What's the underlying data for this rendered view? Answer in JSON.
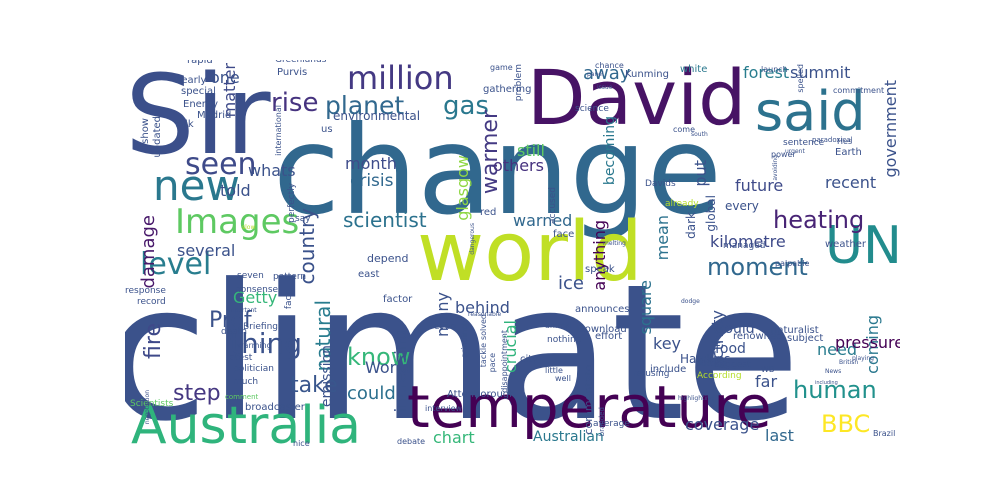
{
  "colors": {
    "background": "#ffffff",
    "palette": [
      "#440154",
      "#3b528b",
      "#31688e",
      "#21918c",
      "#35b779",
      "#5ec962",
      "#b5de2b",
      "#fde725"
    ]
  },
  "words": [
    {
      "text": "climate",
      "color": "#3b528b"
    },
    {
      "text": "change",
      "color": "#31688e"
    },
    {
      "text": "Sir",
      "color": "#3b4f8a"
    },
    {
      "text": "world",
      "color": "#c0df25"
    },
    {
      "text": "David",
      "color": "#471365"
    },
    {
      "text": "temperature",
      "color": "#440154"
    },
    {
      "text": "Australia",
      "color": "#2fb47c"
    },
    {
      "text": "said",
      "color": "#2c728e"
    },
    {
      "text": "UN",
      "color": "#228c8d"
    },
    {
      "text": "new",
      "color": "#2a788e"
    },
    {
      "text": "Images",
      "color": "#5ec962"
    },
    {
      "text": "seen",
      "color": "#3e4a89"
    },
    {
      "text": "level",
      "color": "#287d8e"
    },
    {
      "text": "million",
      "color": "#443983"
    },
    {
      "text": "rise",
      "color": "#46337f"
    },
    {
      "text": "planet",
      "color": "#31688e"
    },
    {
      "text": "gas",
      "color": "#2a788e"
    },
    {
      "text": "warmer",
      "color": "#443a83"
    },
    {
      "text": "thing",
      "color": "#3b528b"
    },
    {
      "text": "human",
      "color": "#21918c"
    },
    {
      "text": "know",
      "color": "#35b779"
    },
    {
      "text": "heating",
      "color": "#482475"
    },
    {
      "text": "moment",
      "color": "#31688e"
    },
    {
      "text": "BBC",
      "color": "#fde725"
    },
    {
      "text": "Prof",
      "color": "#3b528b"
    },
    {
      "text": "step",
      "color": "#453781"
    },
    {
      "text": "take",
      "color": "#39568c"
    },
    {
      "text": "fire",
      "color": "#3e4989"
    },
    {
      "text": "could",
      "color": "#2d708e"
    },
    {
      "text": "natural",
      "color": "#287c8e"
    },
    {
      "text": "damage",
      "color": "#48186a"
    },
    {
      "text": "country",
      "color": "#3b528b"
    },
    {
      "text": "scientist",
      "color": "#2c728e"
    },
    {
      "text": "crisis",
      "color": "#31688e"
    },
    {
      "text": "month",
      "color": "#3e4c8a"
    },
    {
      "text": "others",
      "color": "#46327e"
    },
    {
      "text": "still",
      "color": "#5ec962"
    },
    {
      "text": "glasgow",
      "color": "#8fd744"
    },
    {
      "text": "becoming",
      "color": "#2a788e"
    },
    {
      "text": "warned",
      "color": "#31688e"
    },
    {
      "text": "anything",
      "color": "#440154"
    },
    {
      "text": "mean",
      "color": "#2c728e"
    },
    {
      "text": "put",
      "color": "#3b528b"
    },
    {
      "text": "away",
      "color": "#31688e"
    },
    {
      "text": "forest",
      "color": "#287d8e"
    },
    {
      "text": "summit",
      "color": "#3b528b"
    },
    {
      "text": "government",
      "color": "#3b528b"
    },
    {
      "text": "recent",
      "color": "#3b528b"
    },
    {
      "text": "future",
      "color": "#3e4a89"
    },
    {
      "text": "kilometre",
      "color": "#3e4a89"
    },
    {
      "text": "square",
      "color": "#2c728e"
    },
    {
      "text": "coming",
      "color": "#2a788e"
    },
    {
      "text": "need",
      "color": "#287c8e"
    },
    {
      "text": "activity",
      "color": "#3b528b"
    },
    {
      "text": "far",
      "color": "#3b528b"
    },
    {
      "text": "last",
      "color": "#31688e"
    },
    {
      "text": "coverage",
      "color": "#3b528b"
    },
    {
      "text": "Australian",
      "color": "#2a788e"
    },
    {
      "text": "chart",
      "color": "#35b779"
    },
    {
      "text": "ice",
      "color": "#3b528b"
    },
    {
      "text": "behind",
      "color": "#3b528b"
    },
    {
      "text": "crucial",
      "color": "#2fb47c"
    },
    {
      "text": "many",
      "color": "#3b528b"
    },
    {
      "text": "increasing",
      "color": "#3b528b"
    },
    {
      "text": "emission",
      "color": "#3b528b"
    },
    {
      "text": "World",
      "color": "#3b528b"
    },
    {
      "text": "several",
      "color": "#3b528b"
    },
    {
      "text": "Getty",
      "color": "#35b779"
    },
    {
      "text": "told",
      "color": "#3b528b"
    },
    {
      "text": "whats",
      "color": "#3b528b"
    },
    {
      "text": "matter",
      "color": "#3e4a89"
    },
    {
      "text": "one",
      "color": "#3b528b"
    },
    {
      "text": "key",
      "color": "#3b528b"
    },
    {
      "text": "pressure",
      "color": "#440154"
    },
    {
      "text": "dark",
      "color": "#3b528b"
    },
    {
      "text": "global",
      "color": "#3b528b"
    },
    {
      "text": "every",
      "color": "#3b528b"
    },
    {
      "text": "would",
      "color": "#3b528b"
    },
    {
      "text": "food",
      "color": "#3b528b"
    },
    {
      "text": "Earth",
      "color": "#3b528b"
    },
    {
      "text": "white",
      "color": "#2a788e"
    },
    {
      "text": "Kunming",
      "color": "#3b528b"
    },
    {
      "text": "environmental",
      "color": "#3b528b"
    },
    {
      "text": "gathering",
      "color": "#3b528b"
    },
    {
      "text": "Purvis",
      "color": "#3b528b"
    },
    {
      "text": "nearly",
      "color": "#3b528b"
    },
    {
      "text": "special",
      "color": "#3b528b"
    },
    {
      "text": "Energy",
      "color": "#3b528b"
    },
    {
      "text": "Madrid",
      "color": "#3b528b"
    },
    {
      "text": "show",
      "color": "#3b528b"
    },
    {
      "text": "updated",
      "color": "#3b528b"
    },
    {
      "text": "talk",
      "color": "#3b528b"
    },
    {
      "text": "rapid",
      "color": "#3b528b"
    },
    {
      "text": "Greenlands",
      "color": "#3b528b"
    },
    {
      "text": "international",
      "color": "#3b528b"
    },
    {
      "text": "us",
      "color": "#3b528b"
    },
    {
      "text": "red",
      "color": "#3b528b"
    },
    {
      "text": "depend",
      "color": "#3b528b"
    },
    {
      "text": "east",
      "color": "#3b528b"
    },
    {
      "text": "Briefing",
      "color": "#3b528b"
    },
    {
      "text": "death",
      "color": "#3b528b"
    },
    {
      "text": "latest",
      "color": "#3b528b"
    },
    {
      "text": "politician",
      "color": "#3b528b"
    },
    {
      "text": "much",
      "color": "#3b528b"
    },
    {
      "text": "broadcaster",
      "color": "#3b528b"
    },
    {
      "text": "Scientists",
      "color": "#5ec962"
    },
    {
      "text": "comment",
      "color": "#5ec962"
    },
    {
      "text": "Attenborough",
      "color": "#3b528b"
    },
    {
      "text": "interview",
      "color": "#3b528b"
    },
    {
      "text": "debate",
      "color": "#3b528b"
    },
    {
      "text": "average",
      "color": "#3b528b"
    },
    {
      "text": "city",
      "color": "#3b528b"
    },
    {
      "text": "Hawkins",
      "color": "#3b528b"
    },
    {
      "text": "commentator",
      "color": "#3b528b"
    },
    {
      "text": "Download",
      "color": "#3b528b"
    },
    {
      "text": "effort",
      "color": "#3b528b"
    },
    {
      "text": "refusing",
      "color": "#3b528b"
    },
    {
      "text": "According",
      "color": "#b5de2b"
    },
    {
      "text": "putting",
      "color": "#3b528b"
    },
    {
      "text": "include",
      "color": "#3b528b"
    },
    {
      "text": "suggest",
      "color": "#3b528b"
    },
    {
      "text": "subject",
      "color": "#3b528b"
    },
    {
      "text": "naturalist",
      "color": "#3b528b"
    },
    {
      "text": "renowned",
      "color": "#3b528b"
    },
    {
      "text": "managed",
      "color": "#3b528b"
    },
    {
      "text": "palpable",
      "color": "#3b528b"
    },
    {
      "text": "weather",
      "color": "#3b528b"
    },
    {
      "text": "response",
      "color": "#3b528b"
    },
    {
      "text": "record",
      "color": "#3b528b"
    },
    {
      "text": "seven",
      "color": "#3b528b"
    },
    {
      "text": "nonsense",
      "color": "#3b528b"
    },
    {
      "text": "pattern",
      "color": "#3b528b"
    },
    {
      "text": "fact",
      "color": "#3b528b"
    },
    {
      "text": "factor",
      "color": "#3b528b"
    },
    {
      "text": "even",
      "color": "#3b528b"
    },
    {
      "text": "animal",
      "color": "#3b528b"
    },
    {
      "text": "pace",
      "color": "#3b528b"
    },
    {
      "text": "nothing",
      "color": "#3b528b"
    },
    {
      "text": "announces",
      "color": "#3b528b"
    },
    {
      "text": "speak",
      "color": "#3b528b"
    },
    {
      "text": "already",
      "color": "#b5de2b"
    },
    {
      "text": "Davids",
      "color": "#3b528b"
    },
    {
      "text": "accused",
      "color": "#3b528b"
    },
    {
      "text": "face",
      "color": "#3b528b"
    },
    {
      "text": "perfectly",
      "color": "#3b528b"
    },
    {
      "text": "say",
      "color": "#3b528b"
    },
    {
      "text": "disappointment",
      "color": "#3b528b"
    },
    {
      "text": "tackle",
      "color": "#3b528b"
    },
    {
      "text": "grindingly",
      "color": "#3b528b"
    },
    {
      "text": "solved",
      "color": "#3b528b"
    },
    {
      "text": "warming",
      "color": "#3b528b"
    },
    {
      "text": "important",
      "color": "#3b528b"
    },
    {
      "text": "negotiation",
      "color": "#3b528b"
    },
    {
      "text": "problem",
      "color": "#3b528b"
    },
    {
      "text": "launch",
      "color": "#3b528b"
    },
    {
      "text": "Hes",
      "color": "#3b528b"
    },
    {
      "text": "spelled",
      "color": "#3b528b"
    },
    {
      "text": "sentence",
      "color": "#3b528b"
    },
    {
      "text": "south",
      "color": "#3b528b"
    },
    {
      "text": "come",
      "color": "#3b528b"
    },
    {
      "text": "science",
      "color": "#3b528b"
    },
    {
      "text": "well",
      "color": "#3b528b"
    },
    {
      "text": "branded",
      "color": "#3b528b"
    },
    {
      "text": "WB",
      "color": "#3b528b"
    },
    {
      "text": "Brazil",
      "color": "#3b528b"
    },
    {
      "text": "nice",
      "color": "#3b528b"
    },
    {
      "text": "slow",
      "color": "#b5de2b"
    },
    {
      "text": "game",
      "color": "#3b528b"
    },
    {
      "text": "chance",
      "color": "#3b528b"
    },
    {
      "text": "issue",
      "color": "#3b528b"
    },
    {
      "text": "little",
      "color": "#3b528b"
    },
    {
      "text": "dodge",
      "color": "#3b528b"
    },
    {
      "text": "News",
      "color": "#3b528b"
    },
    {
      "text": "British",
      "color": "#3b528b"
    },
    {
      "text": "highlighting",
      "color": "#3b528b"
    },
    {
      "text": "including",
      "color": "#3b528b"
    },
    {
      "text": "power",
      "color": "#3b528b"
    },
    {
      "text": "commitment",
      "color": "#3b528b"
    },
    {
      "text": "avoiding",
      "color": "#3b528b"
    },
    {
      "text": "paradoxical",
      "color": "#3b528b"
    },
    {
      "text": "urgent",
      "color": "#3b528b"
    },
    {
      "text": "melting",
      "color": "#3b528b"
    },
    {
      "text": "reasonable",
      "color": "#3b528b"
    },
    {
      "text": "dangerous",
      "color": "#3b528b"
    },
    {
      "text": "panel",
      "color": "#3b528b"
    },
    {
      "text": "playing",
      "color": "#3b528b"
    },
    {
      "text": "station",
      "color": "#3b528b"
    },
    {
      "text": "Back",
      "color": "#3b528b"
    }
  ]
}
